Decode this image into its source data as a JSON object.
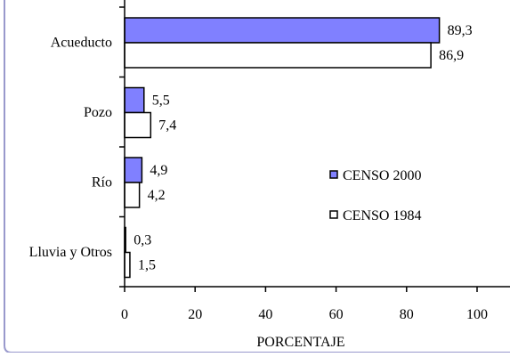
{
  "chart_data": {
    "type": "bar",
    "orientation": "horizontal",
    "categories": [
      "Acueducto",
      "Pozo",
      "Río",
      "Lluvia y Otros"
    ],
    "series": [
      {
        "name": "CENSO 2000",
        "values": [
          89.3,
          5.5,
          4.9,
          0.3
        ],
        "labels": [
          "89,3",
          "5,5",
          "4,9",
          "0,3"
        ],
        "color": "#8080ff"
      },
      {
        "name": "CENSO 1984",
        "values": [
          86.9,
          7.4,
          4.2,
          1.5
        ],
        "labels": [
          "86,9",
          "7,4",
          "4,2",
          "1,5"
        ],
        "color": "#ffffff"
      }
    ],
    "xlabel": "PORCENTAJE",
    "ylabel": "",
    "xlim": [
      0,
      100
    ],
    "xticks": [
      "0",
      "20",
      "40",
      "60",
      "80",
      "100"
    ],
    "grid": "vertical",
    "legend": "center-right",
    "frame_color": "#9999cc"
  }
}
